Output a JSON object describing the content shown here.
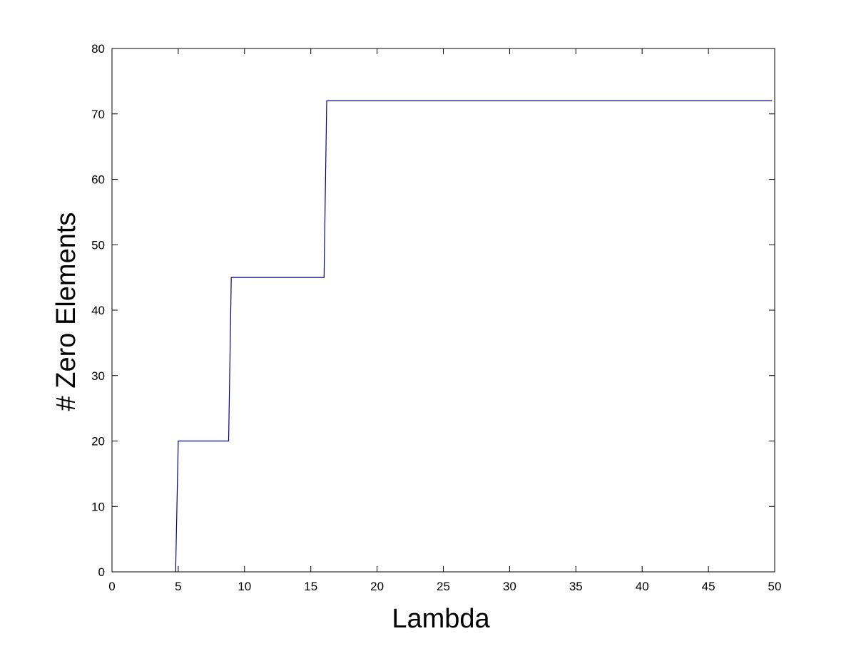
{
  "chart_data": {
    "type": "line",
    "title": "",
    "xlabel": "Lambda",
    "ylabel": "# Zero Elements",
    "xlim": [
      0,
      50
    ],
    "ylim": [
      0,
      80
    ],
    "x_ticks": [
      0,
      5,
      10,
      15,
      20,
      25,
      30,
      35,
      40,
      45,
      50
    ],
    "x_tick_labels": [
      "0",
      "5",
      "10",
      "15",
      "20",
      "25",
      "30",
      "35",
      "40",
      "45",
      "50"
    ],
    "y_ticks": [
      0,
      10,
      20,
      30,
      40,
      50,
      60,
      70,
      80
    ],
    "y_tick_labels": [
      "0",
      "10",
      "20",
      "30",
      "40",
      "50",
      "60",
      "70",
      "80"
    ],
    "grid": false,
    "legend": "none",
    "series": [
      {
        "color": "#00008b",
        "points": [
          {
            "x": 4.8,
            "y": 0
          },
          {
            "x": 5.0,
            "y": 20
          },
          {
            "x": 8.8,
            "y": 20
          },
          {
            "x": 9.0,
            "y": 45
          },
          {
            "x": 16.0,
            "y": 45
          },
          {
            "x": 16.2,
            "y": 72
          },
          {
            "x": 49.8,
            "y": 72
          }
        ]
      }
    ]
  }
}
